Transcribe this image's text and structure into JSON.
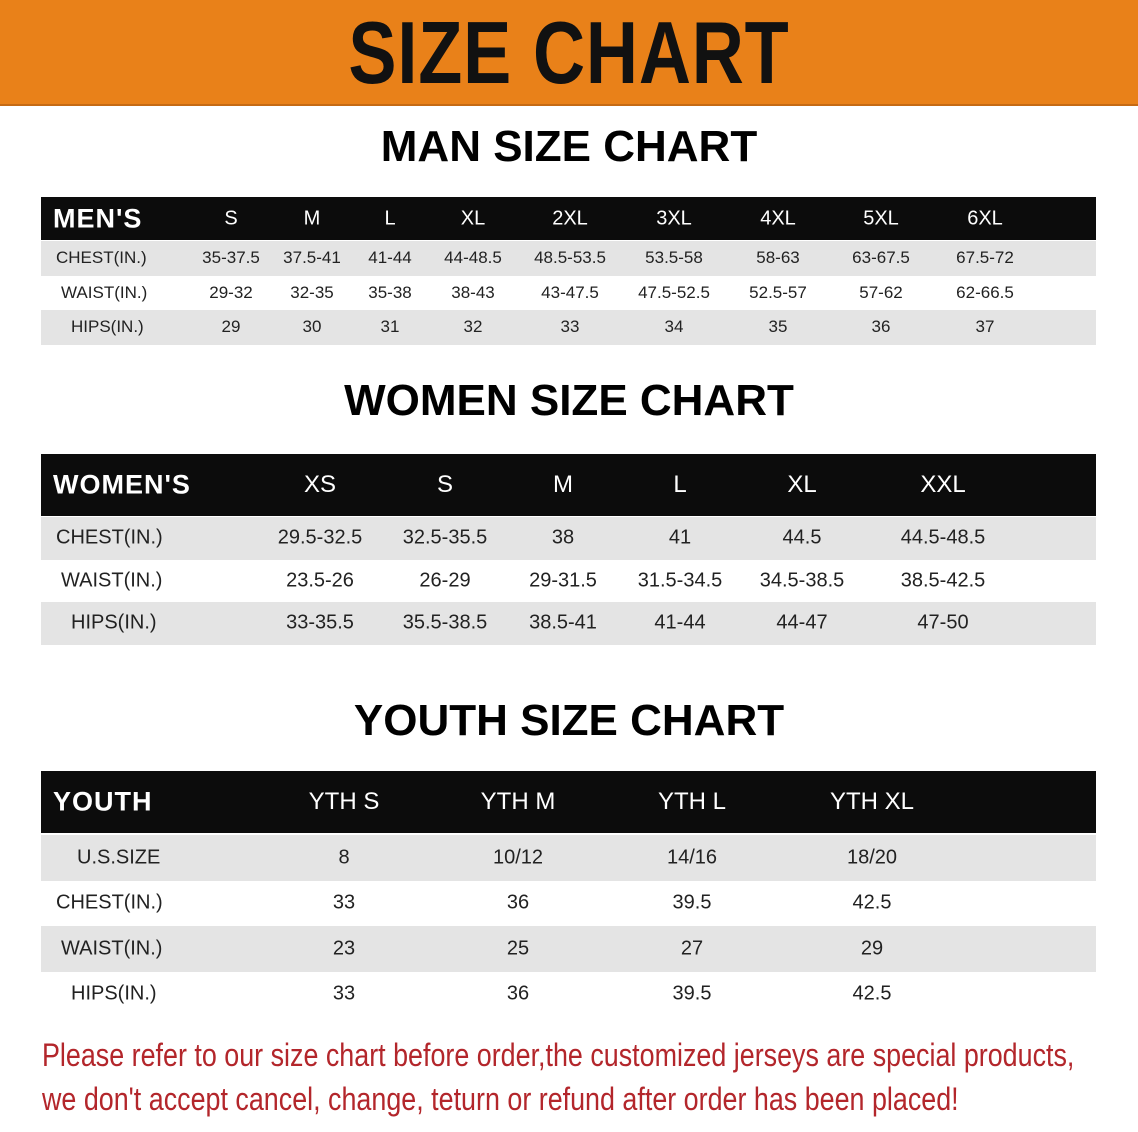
{
  "banner": {
    "title": "SIZE CHART",
    "color": "#e98119"
  },
  "men": {
    "title": "MAN SIZE CHART",
    "header": "MEN'S",
    "sizes": [
      "S",
      "M",
      "L",
      "XL",
      "2XL",
      "3XL",
      "4XL",
      "5XL",
      "6XL"
    ],
    "rows": [
      {
        "label": "CHEST(IN.)",
        "values": [
          "35-37.5",
          "37.5-41",
          "41-44",
          "44-48.5",
          "48.5-53.5",
          "53.5-58",
          "58-63",
          "63-67.5",
          "67.5-72"
        ]
      },
      {
        "label": "WAIST(IN.)",
        "values": [
          "29-32",
          "32-35",
          "35-38",
          "38-43",
          "43-47.5",
          "47.5-52.5",
          "52.5-57",
          "57-62",
          "62-66.5"
        ]
      },
      {
        "label": "HIPS(IN.)",
        "values": [
          "29",
          "30",
          "31",
          "32",
          "33",
          "34",
          "35",
          "36",
          "37"
        ]
      }
    ]
  },
  "women": {
    "title": "WOMEN SIZE CHART",
    "header": "WOMEN'S",
    "sizes": [
      "XS",
      "S",
      "M",
      "L",
      "XL",
      "XXL"
    ],
    "rows": [
      {
        "label": "CHEST(IN.)",
        "values": [
          "29.5-32.5",
          "32.5-35.5",
          "38",
          "41",
          "44.5",
          "44.5-48.5"
        ]
      },
      {
        "label": "WAIST(IN.)",
        "values": [
          "23.5-26",
          "26-29",
          "29-31.5",
          "31.5-34.5",
          "34.5-38.5",
          "38.5-42.5"
        ]
      },
      {
        "label": "HIPS(IN.)",
        "values": [
          "33-35.5",
          "35.5-38.5",
          "38.5-41",
          "41-44",
          "44-47",
          "47-50"
        ]
      }
    ]
  },
  "youth": {
    "title": "YOUTH SIZE CHART",
    "header": "YOUTH",
    "sizes": [
      "YTH S",
      "YTH M",
      "YTH L",
      "YTH XL"
    ],
    "rows": [
      {
        "label": "U.S.SIZE",
        "values": [
          "8",
          "10/12",
          "14/16",
          "18/20"
        ]
      },
      {
        "label": "CHEST(IN.)",
        "values": [
          "33",
          "36",
          "39.5",
          "42.5"
        ]
      },
      {
        "label": "WAIST(IN.)",
        "values": [
          "23",
          "25",
          "27",
          "29"
        ]
      },
      {
        "label": "HIPS(IN.)",
        "values": [
          "33",
          "36",
          "39.5",
          "42.5"
        ]
      }
    ]
  },
  "notice": {
    "line1": "Please refer to our size chart before order,the customized jerseys are special products,",
    "line2": "we don't accept cancel, change, teturn or refund after order has been placed!",
    "color": "#b3262b"
  }
}
